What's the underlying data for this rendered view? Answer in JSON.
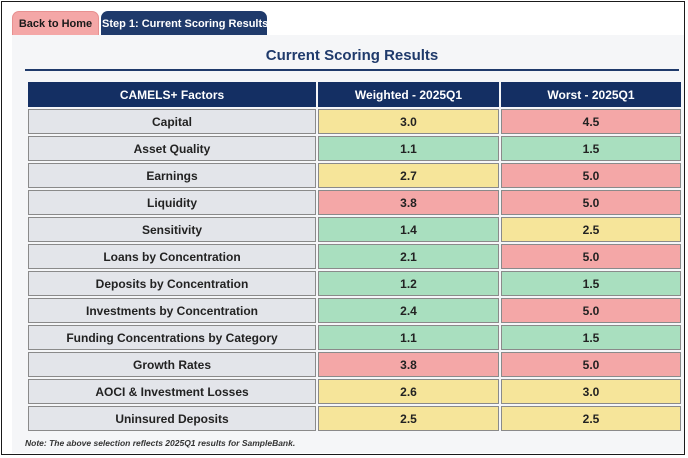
{
  "tabs": {
    "back_home": "Back to Home",
    "step1": "Step 1: Current Scoring Results"
  },
  "page": {
    "title": "Current Scoring Results"
  },
  "table": {
    "headers": [
      "CAMELS+ Factors",
      "Weighted - 2025Q1",
      "Worst - 2025Q1"
    ],
    "rows": [
      {
        "factor": "Capital",
        "weighted": "3.0",
        "weighted_status": "yellow",
        "worst": "4.5",
        "worst_status": "red"
      },
      {
        "factor": "Asset Quality",
        "weighted": "1.1",
        "weighted_status": "green",
        "worst": "1.5",
        "worst_status": "green"
      },
      {
        "factor": "Earnings",
        "weighted": "2.7",
        "weighted_status": "yellow",
        "worst": "5.0",
        "worst_status": "red"
      },
      {
        "factor": "Liquidity",
        "weighted": "3.8",
        "weighted_status": "red",
        "worst": "5.0",
        "worst_status": "red"
      },
      {
        "factor": "Sensitivity",
        "weighted": "1.4",
        "weighted_status": "green",
        "worst": "2.5",
        "worst_status": "yellow"
      },
      {
        "factor": "Loans by Concentration",
        "weighted": "2.1",
        "weighted_status": "green",
        "worst": "5.0",
        "worst_status": "red"
      },
      {
        "factor": "Deposits by Concentration",
        "weighted": "1.2",
        "weighted_status": "green",
        "worst": "1.5",
        "worst_status": "green"
      },
      {
        "factor": "Investments by Concentration",
        "weighted": "2.4",
        "weighted_status": "green",
        "worst": "5.0",
        "worst_status": "red"
      },
      {
        "factor": "Funding Concentrations by Category",
        "weighted": "1.1",
        "weighted_status": "green",
        "worst": "1.5",
        "worst_status": "green"
      },
      {
        "factor": "Growth Rates",
        "weighted": "3.8",
        "weighted_status": "red",
        "worst": "5.0",
        "worst_status": "red"
      },
      {
        "factor": "AOCI & Investment Losses",
        "weighted": "2.6",
        "weighted_status": "yellow",
        "worst": "3.0",
        "worst_status": "yellow"
      },
      {
        "factor": "Uninsured Deposits",
        "weighted": "2.5",
        "weighted_status": "yellow",
        "worst": "2.5",
        "worst_status": "yellow"
      }
    ]
  },
  "note": "Note: The above selection reflects 2025Q1 results for SampleBank.",
  "colors": {
    "navy": "#142f63",
    "green": "#a9dfbf",
    "yellow": "#f6e59a",
    "red": "#f4a7a7",
    "factor_bg": "#e3e5ea"
  }
}
